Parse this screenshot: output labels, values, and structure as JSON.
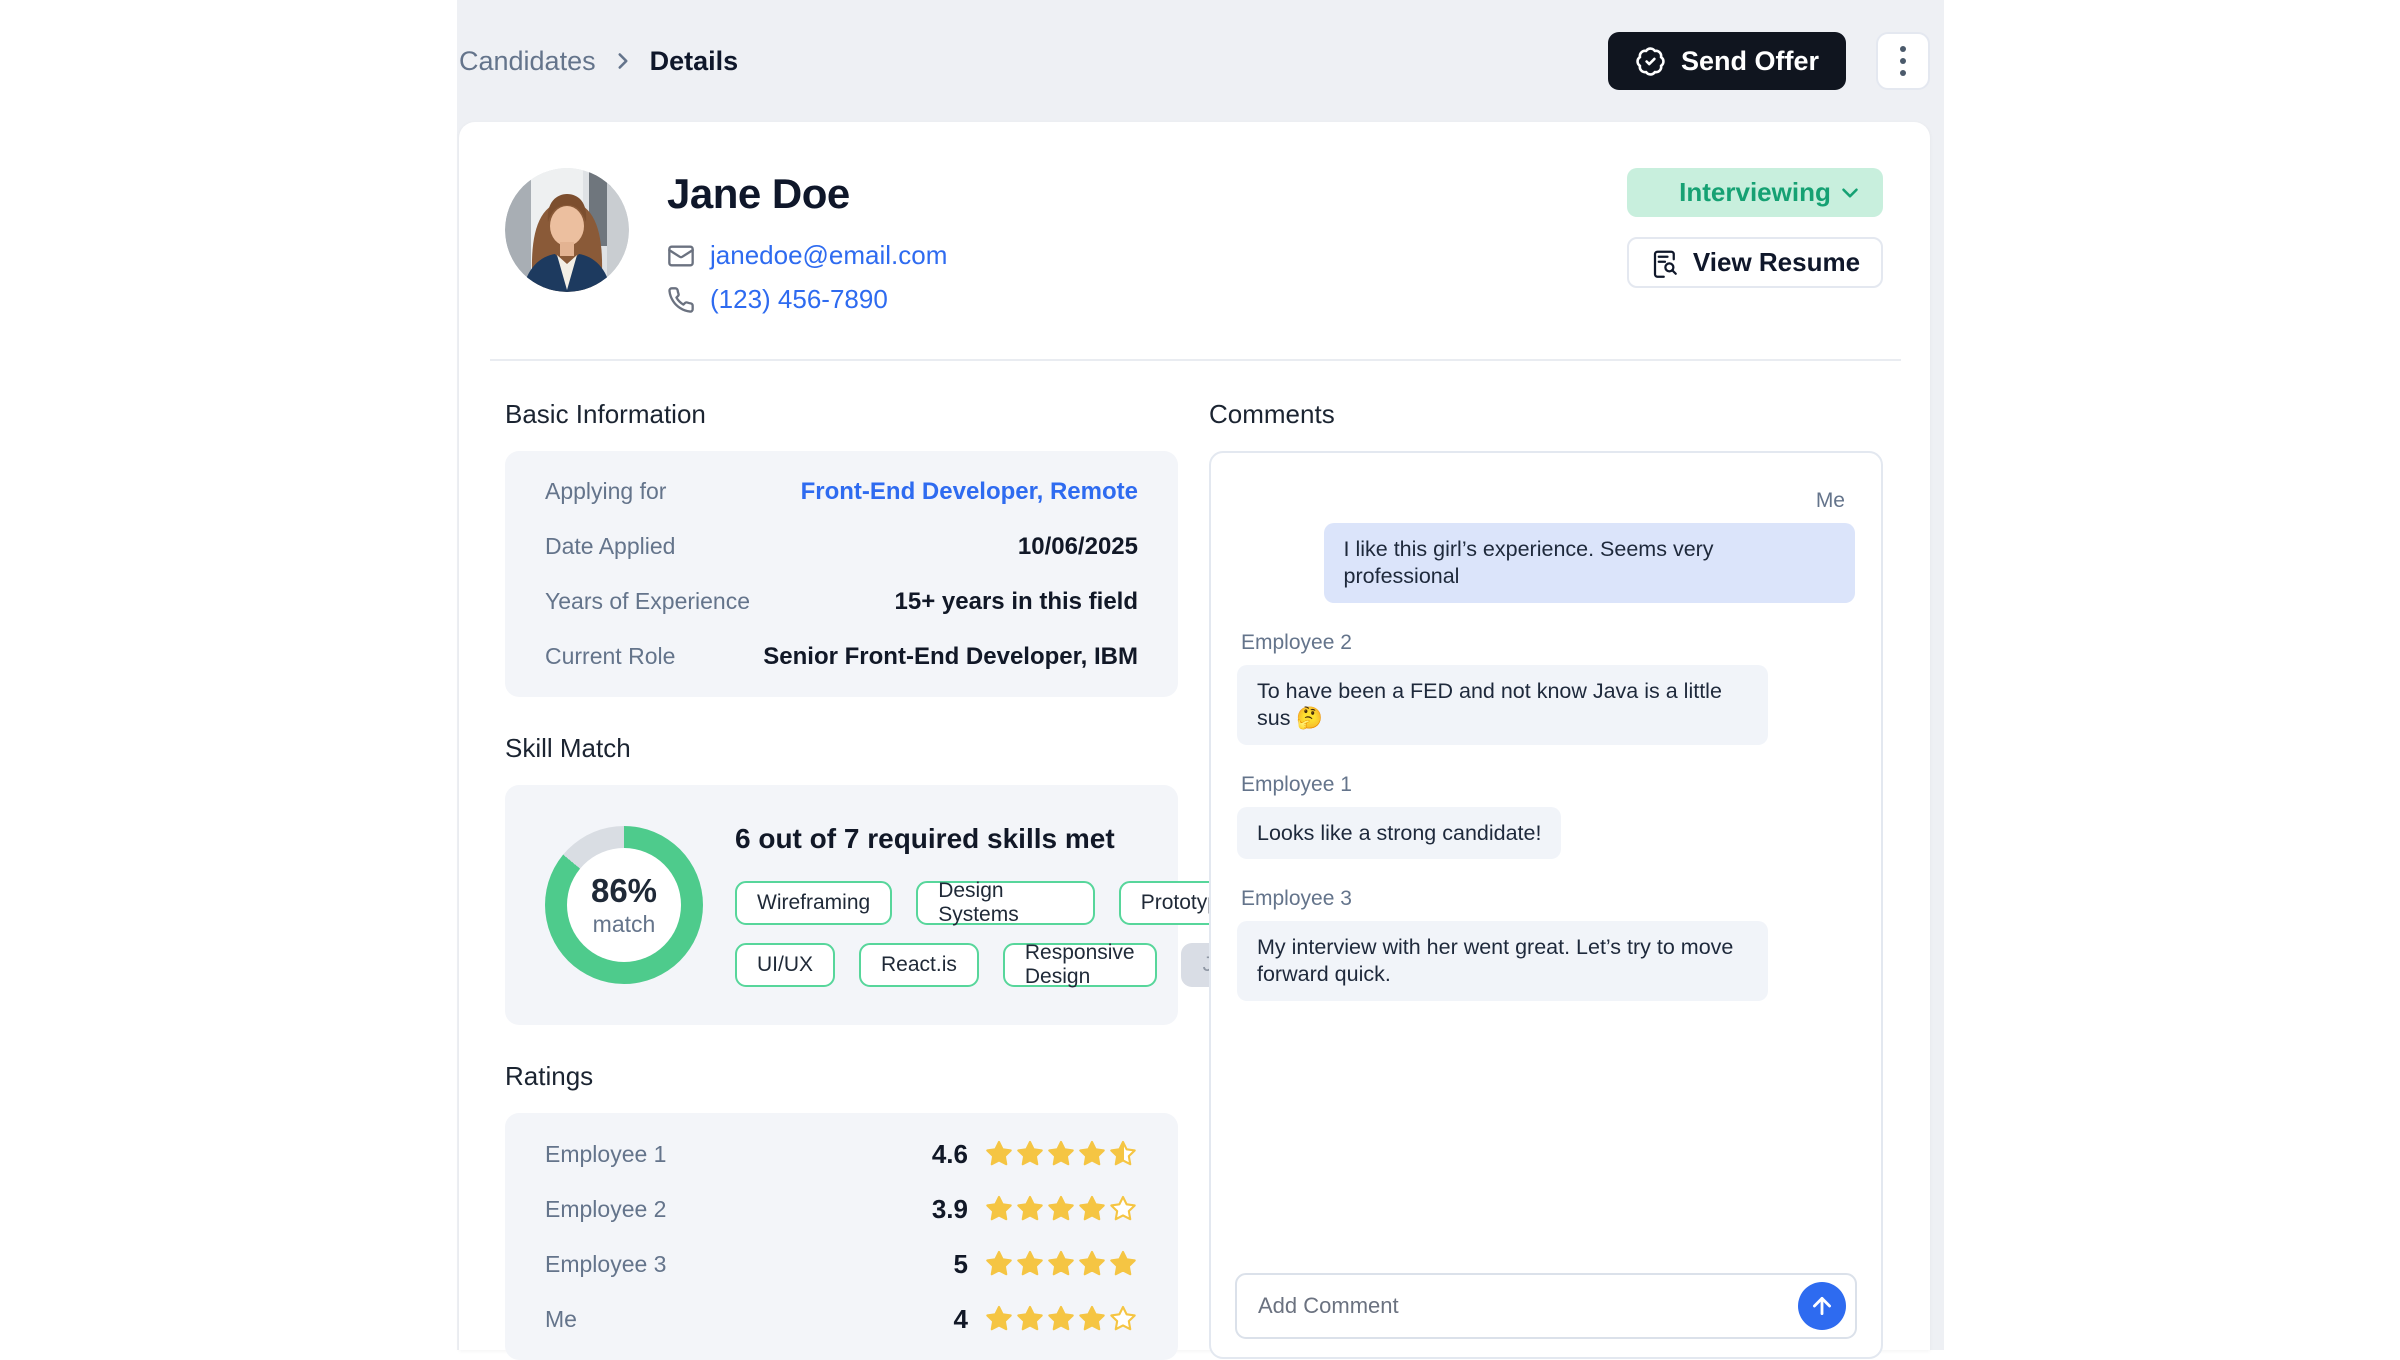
{
  "breadcrumb": {
    "parent": "Candidates",
    "current": "Details"
  },
  "header": {
    "send_offer_label": "Send Offer"
  },
  "profile": {
    "name": "Jane Doe",
    "email": "janedoe@email.com",
    "phone": "(123) 456-7890",
    "status_label": "Interviewing",
    "view_resume_label": "View Resume"
  },
  "basic_info": {
    "title": "Basic Information",
    "rows": [
      {
        "label": "Applying for",
        "value": "Front-End Developer, Remote",
        "is_link": true
      },
      {
        "label": "Date Applied",
        "value": "10/06/2025",
        "is_link": false
      },
      {
        "label": "Years of Experience",
        "value": "15+ years in this field",
        "is_link": false
      },
      {
        "label": "Current Role",
        "value": "Senior Front-End Developer, IBM",
        "is_link": false
      }
    ]
  },
  "skill_match": {
    "title": "Skill Match",
    "percent_text": "86%",
    "percent_value": 86,
    "match_label": "match",
    "summary": "6 out of 7 required skills met",
    "skills": [
      {
        "name": "Wireframing",
        "met": true
      },
      {
        "name": "Design Systems",
        "met": true
      },
      {
        "name": "Prototyping",
        "met": true
      },
      {
        "name": "UI/UX",
        "met": true
      },
      {
        "name": "React.is",
        "met": true
      },
      {
        "name": "Responsive Design",
        "met": true
      },
      {
        "name": "Java",
        "met": false
      }
    ]
  },
  "ratings": {
    "title": "Ratings",
    "rows": [
      {
        "name": "Employee 1",
        "value_text": "4.6",
        "stars": 4.5
      },
      {
        "name": "Employee 2",
        "value_text": "3.9",
        "stars": 4
      },
      {
        "name": "Employee 3",
        "value_text": "5",
        "stars": 5
      },
      {
        "name": "Me",
        "value_text": "4",
        "stars": 4
      }
    ]
  },
  "comments": {
    "title": "Comments",
    "messages": [
      {
        "author": "Me",
        "text": "I like this girl’s experience. Seems very professional",
        "own": true
      },
      {
        "author": "Employee 2",
        "text": "To have been a FED and not know Java is a little sus 🤔",
        "own": false
      },
      {
        "author": "Employee 1",
        "text": "Looks like a strong candidate!",
        "own": false
      },
      {
        "author": "Employee 3",
        "text": "My interview with her went great. Let’s try to move forward quick.",
        "own": false
      }
    ],
    "input_placeholder": "Add Comment"
  },
  "icons": {
    "breadcrumb_separator": "chevron-right-icon",
    "send_offer": "badge-check-icon",
    "more_options": "kebab-icon",
    "email": "mail-icon",
    "phone": "phone-icon",
    "status_dropdown": "chevron-down-icon",
    "view_resume": "file-search-icon",
    "send_comment": "arrow-up-icon",
    "rating": "star-icon"
  },
  "colors": {
    "accent_blue": "#2E6BF0",
    "status_green": "#16A173",
    "status_green_bg": "#C8EFDD",
    "donut_green": "#4ECB8C",
    "donut_rest": "#D9DDE3",
    "star_yellow": "#F5C543",
    "send_offer_bg": "#10151F",
    "own_bubble_bg": "#DBE4FA",
    "panel_gray": "#F3F5F9",
    "page_gray": "#EEF0F4"
  }
}
